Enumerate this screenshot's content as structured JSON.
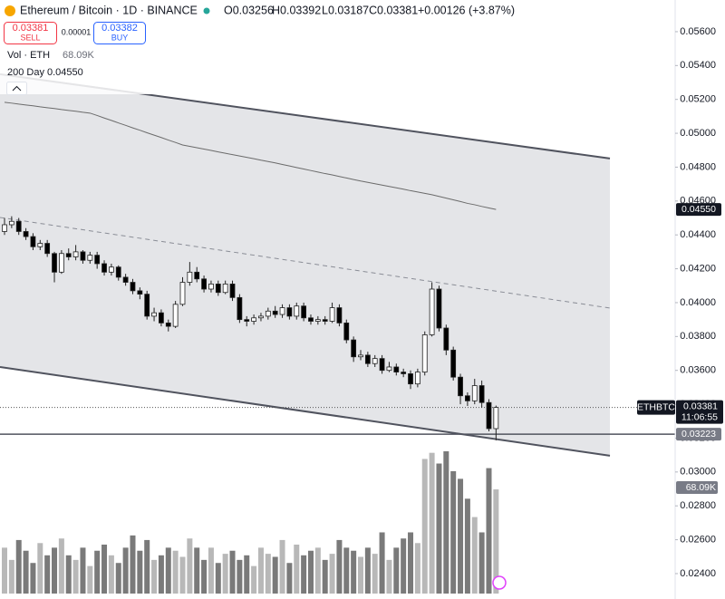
{
  "chart_data": {
    "type": "candlestick",
    "title": "Ethereum / Bitcoin · 1D · BINANCE",
    "ohlc_text": [
      "O0.03256",
      "H0.03392",
      "L0.03187",
      "C0.03381",
      "+0.00126 (+3.87%)"
    ],
    "sell": {
      "price": "0.03381",
      "label": "SELL"
    },
    "spread": "0.00001",
    "buy": {
      "price": "0.03382",
      "label": "BUY"
    },
    "symbol": "ETHBTC",
    "countdown": "11:06:55",
    "up_color": "#ffffff",
    "down_color": "#000000",
    "wick_color": "#222222",
    "open": [
      0.0442,
      0.0446,
      0.0448,
      0.0442,
      0.0439,
      0.0433,
      0.0435,
      0.0429,
      0.0418,
      0.0429,
      0.0427,
      0.043,
      0.0425,
      0.0428,
      0.0423,
      0.0418,
      0.0421,
      0.0415,
      0.0412,
      0.0407,
      0.0405,
      0.0392,
      0.0394,
      0.0388,
      0.0386,
      0.0399,
      0.0412,
      0.0418,
      0.0414,
      0.0408,
      0.0411,
      0.0406,
      0.0411,
      0.0403,
      0.039,
      0.0389,
      0.0391,
      0.0392,
      0.0395,
      0.0393,
      0.0397,
      0.0392,
      0.0398,
      0.0391,
      0.0389,
      0.039,
      0.0389,
      0.0397,
      0.0388,
      0.0378,
      0.0368,
      0.0369,
      0.0364,
      0.0367,
      0.036,
      0.0362,
      0.0359,
      0.0358,
      0.0352,
      0.0359,
      0.0381,
      0.0408,
      0.0385,
      0.0372,
      0.0356,
      0.0345,
      0.0342,
      0.0351,
      0.0341,
      0.03256
    ],
    "high": [
      0.045,
      0.0451,
      0.045,
      0.0444,
      0.0441,
      0.0437,
      0.0437,
      0.043,
      0.0431,
      0.0432,
      0.0434,
      0.0431,
      0.043,
      0.043,
      0.0425,
      0.0423,
      0.0422,
      0.0417,
      0.0414,
      0.0409,
      0.0407,
      0.0397,
      0.0396,
      0.039,
      0.0401,
      0.0415,
      0.0424,
      0.0421,
      0.0416,
      0.0413,
      0.0413,
      0.0413,
      0.0413,
      0.0405,
      0.0392,
      0.0393,
      0.0394,
      0.0397,
      0.0398,
      0.0399,
      0.0399,
      0.04,
      0.04,
      0.0393,
      0.0392,
      0.0392,
      0.04,
      0.0399,
      0.039,
      0.038,
      0.0372,
      0.0371,
      0.0369,
      0.0369,
      0.0365,
      0.0364,
      0.0361,
      0.036,
      0.0361,
      0.0383,
      0.0412,
      0.041,
      0.0387,
      0.0374,
      0.0358,
      0.0347,
      0.0355,
      0.0354,
      0.0343,
      0.03392
    ],
    "low": [
      0.044,
      0.0444,
      0.044,
      0.0437,
      0.0431,
      0.0431,
      0.0427,
      0.0412,
      0.0417,
      0.0425,
      0.0425,
      0.0423,
      0.0423,
      0.042,
      0.0416,
      0.0416,
      0.0413,
      0.041,
      0.0405,
      0.0402,
      0.039,
      0.0389,
      0.0386,
      0.0383,
      0.0385,
      0.0398,
      0.041,
      0.0412,
      0.0406,
      0.0406,
      0.0404,
      0.0405,
      0.0401,
      0.0388,
      0.0386,
      0.0387,
      0.0389,
      0.039,
      0.0391,
      0.0391,
      0.039,
      0.039,
      0.0389,
      0.0387,
      0.0387,
      0.0387,
      0.0388,
      0.0386,
      0.0376,
      0.0365,
      0.0366,
      0.0362,
      0.0362,
      0.0358,
      0.0359,
      0.0357,
      0.0356,
      0.0349,
      0.035,
      0.0357,
      0.038,
      0.0383,
      0.0369,
      0.0354,
      0.034,
      0.0339,
      0.034,
      0.0338,
      0.0324,
      0.03187
    ],
    "close": [
      0.0446,
      0.0448,
      0.0442,
      0.0439,
      0.0433,
      0.0435,
      0.0429,
      0.0418,
      0.0429,
      0.0427,
      0.043,
      0.0425,
      0.0428,
      0.0423,
      0.0418,
      0.0421,
      0.0415,
      0.0412,
      0.0407,
      0.0405,
      0.0392,
      0.0394,
      0.0388,
      0.0386,
      0.0399,
      0.0412,
      0.0418,
      0.0414,
      0.0408,
      0.0411,
      0.0406,
      0.0411,
      0.0403,
      0.039,
      0.0389,
      0.0391,
      0.0392,
      0.0395,
      0.0393,
      0.0397,
      0.0392,
      0.0398,
      0.0391,
      0.0389,
      0.039,
      0.0389,
      0.0397,
      0.0388,
      0.0378,
      0.0368,
      0.0369,
      0.0364,
      0.0367,
      0.036,
      0.0362,
      0.0359,
      0.0358,
      0.0352,
      0.0359,
      0.0381,
      0.0408,
      0.0385,
      0.0372,
      0.0356,
      0.0345,
      0.0342,
      0.0351,
      0.0341,
      0.03256,
      0.03381
    ],
    "last_label": "0.03381",
    "volume": {
      "name": "Vol · ETH",
      "last_label": "68.09K",
      "values": [
        30000,
        22000,
        35000,
        28000,
        20000,
        33000,
        25000,
        30000,
        36000,
        25000,
        22000,
        30000,
        18000,
        28000,
        32000,
        25000,
        20000,
        30000,
        38000,
        28000,
        35000,
        22000,
        25000,
        30000,
        28000,
        24000,
        36000,
        30000,
        22000,
        30000,
        20000,
        26000,
        28000,
        22000,
        25000,
        18000,
        30000,
        26000,
        24000,
        35000,
        20000,
        32000,
        25000,
        28000,
        30000,
        22000,
        26000,
        35000,
        30000,
        28000,
        24000,
        30000,
        26000,
        40000,
        22000,
        30000,
        36000,
        40000,
        33000,
        88000,
        92000,
        85000,
        93000,
        80000,
        75000,
        62000,
        50000,
        40000,
        82000,
        68090
      ],
      "up_color": "#b8b8b8",
      "down_color": "#7a7a7a"
    },
    "ma": {
      "name": "200 Day",
      "color": "#6b6b6b",
      "last_label": "0.04550",
      "values": [
        0.05183,
        0.05178,
        0.05172,
        0.05167,
        0.05162,
        0.05156,
        0.05151,
        0.05146,
        0.0514,
        0.05135,
        0.0513,
        0.05124,
        0.05119,
        0.05105,
        0.0509,
        0.05076,
        0.05061,
        0.05047,
        0.05032,
        0.05018,
        0.05003,
        0.04989,
        0.04975,
        0.0496,
        0.04946,
        0.04931,
        0.04923,
        0.04915,
        0.04907,
        0.04899,
        0.0489,
        0.04882,
        0.04874,
        0.04866,
        0.04858,
        0.0485,
        0.04841,
        0.04833,
        0.04825,
        0.04816,
        0.04807,
        0.04798,
        0.04789,
        0.0478,
        0.04771,
        0.04762,
        0.04754,
        0.04745,
        0.04736,
        0.04727,
        0.04718,
        0.0471,
        0.04702,
        0.04694,
        0.04686,
        0.04678,
        0.0467,
        0.04661,
        0.04653,
        0.04645,
        0.04637,
        0.04627,
        0.04617,
        0.04607,
        0.04597,
        0.04586,
        0.04578,
        0.04568,
        0.04559,
        0.0455
      ]
    },
    "channel": {
      "upper": [
        0.05349,
        0.04851
      ],
      "middle": [
        0.04503,
        0.03968
      ],
      "lower": [
        0.0362,
        0.03096
      ],
      "fill": "#e4e5e8"
    },
    "hline": {
      "value": 0.03223,
      "label": "0.03223"
    },
    "ylim": [
      0.0225,
      0.05787
    ],
    "yticks": [
      {
        "value": 0.056,
        "label": "0.05600"
      },
      {
        "value": 0.054,
        "label": "0.05400"
      },
      {
        "value": 0.052,
        "label": "0.05200"
      },
      {
        "value": 0.05,
        "label": "0.05000"
      },
      {
        "value": 0.048,
        "label": "0.04800"
      },
      {
        "value": 0.046,
        "label": "0.04600"
      },
      {
        "value": 0.044,
        "label": "0.04400"
      },
      {
        "value": 0.042,
        "label": "0.04200"
      },
      {
        "value": 0.04,
        "label": "0.04000"
      },
      {
        "value": 0.038,
        "label": "0.03800"
      },
      {
        "value": 0.036,
        "label": "0.03600"
      },
      {
        "value": 0.034,
        "label": "0.03400"
      },
      {
        "value": 0.032,
        "label": "0.03200"
      },
      {
        "value": 0.03,
        "label": "0.03000"
      },
      {
        "value": 0.028,
        "label": "0.02800"
      },
      {
        "value": 0.026,
        "label": "0.02600"
      },
      {
        "value": 0.024,
        "label": "0.02400"
      }
    ]
  }
}
